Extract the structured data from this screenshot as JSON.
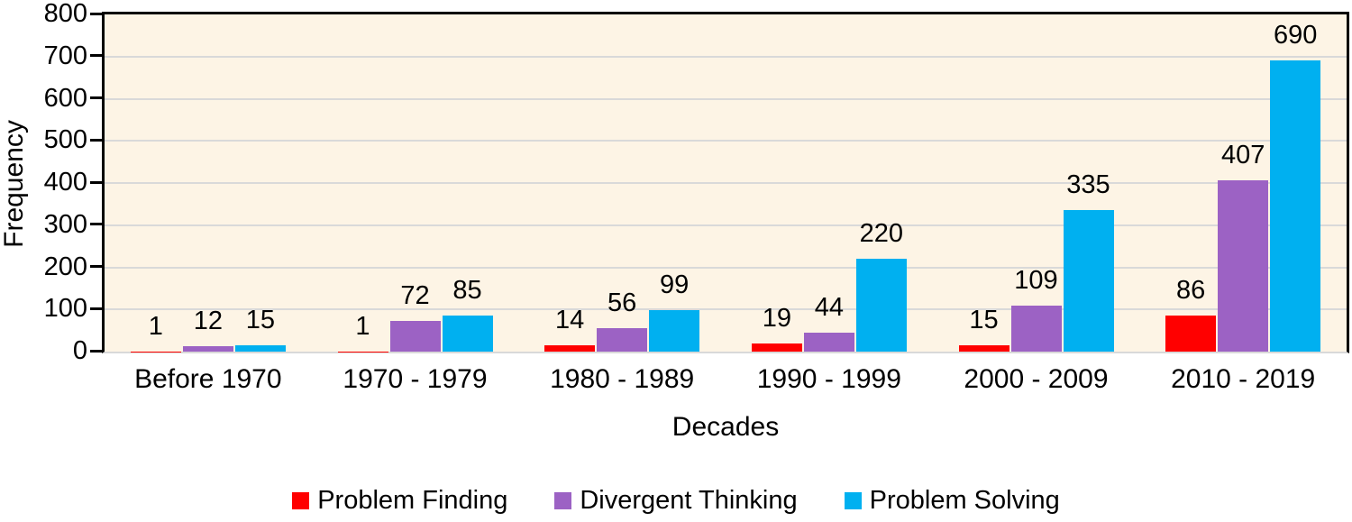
{
  "figure": {
    "background": "#FFFFFF",
    "text_color": "#000000"
  },
  "chart_data": {
    "type": "bar",
    "title": "",
    "categories": [
      "Before 1970",
      "1970 - 1979",
      "1980 - 1989",
      "1990 - 1999",
      "2000 - 2009",
      "2010 - 2019"
    ],
    "series": [
      {
        "name": "Problem Finding",
        "color": "#FF0000",
        "values": [
          1,
          1,
          14,
          19,
          15,
          86
        ]
      },
      {
        "name": "Divergent Thinking",
        "color": "#9C62C4",
        "values": [
          12,
          72,
          56,
          44,
          109,
          407
        ]
      },
      {
        "name": "Problem Solving",
        "color": "#00B0F0",
        "values": [
          15,
          85,
          99,
          220,
          335,
          690
        ]
      }
    ],
    "xlabel": "Decades",
    "ylabel": "Frequency",
    "ylim": [
      0,
      800
    ],
    "ytick_step": 100,
    "ytick_labels": [
      "0",
      "100",
      "200",
      "300",
      "400",
      "500",
      "600",
      "700",
      "800"
    ],
    "grid": true,
    "grid_color": "#D9D9D9",
    "plot_bg": "#FDF4E5",
    "axis_color": "#000000",
    "data_labels": true,
    "legend_position": "bottom"
  }
}
